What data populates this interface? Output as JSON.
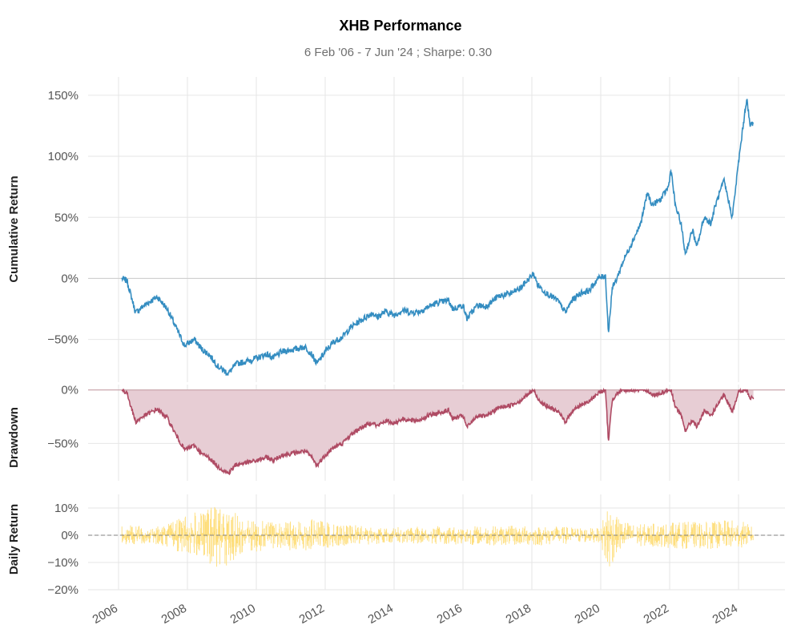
{
  "chart_data": {
    "type": "line",
    "title": "XHB Performance",
    "subtitle": "6 Feb '06 -  7 Jun '24 ;  Sharpe: 0.30",
    "x_ticks": [
      "2006",
      "2008",
      "2010",
      "2012",
      "2014",
      "2016",
      "2018",
      "2020",
      "2022",
      "2024"
    ],
    "x_range": [
      "2006-02-06",
      "2024-06-07"
    ],
    "colors": {
      "cumulative": "#348dc1",
      "drawdown_line": "#af4b64",
      "drawdown_fill": "#e7cdd4",
      "daily": "#fedd78",
      "zero_dashed": "#808080"
    },
    "panels": [
      {
        "name": "cumulative",
        "ylabel": "Cumulative Return",
        "yticks": [
          "150%",
          "100%",
          "50%",
          "0%",
          "−50%"
        ],
        "yvalues": [
          150,
          100,
          50,
          0,
          -50
        ],
        "ylim": [
          -85,
          165
        ],
        "series": [
          {
            "x": [
              "2006-02-06",
              "2006-04-01",
              "2006-07-01",
              "2006-10-01",
              "2007-02-15",
              "2007-06-01",
              "2007-09-01",
              "2007-12-01",
              "2008-03-15",
              "2008-06-01",
              "2008-08-15",
              "2008-11-20",
              "2009-03-09",
              "2009-06-01",
              "2009-09-15",
              "2010-01-15",
              "2010-04-20",
              "2010-07-01",
              "2010-10-01",
              "2011-02-15",
              "2011-06-01",
              "2011-08-10",
              "2011-10-04",
              "2012-01-01",
              "2012-04-01",
              "2012-07-01",
              "2012-10-01",
              "2013-01-01",
              "2013-05-20",
              "2013-07-01",
              "2013-10-01",
              "2014-01-01",
              "2014-04-01",
              "2014-07-01",
              "2014-10-01",
              "2015-01-01",
              "2015-04-01",
              "2015-08-01",
              "2015-09-15",
              "2016-01-01",
              "2016-02-11",
              "2016-06-01",
              "2016-09-01",
              "2017-01-01",
              "2017-06-01",
              "2017-09-01",
              "2018-01-20",
              "2018-03-01",
              "2018-06-01",
              "2018-10-01",
              "2018-12-24",
              "2019-03-01",
              "2019-06-01",
              "2019-09-01",
              "2019-12-01",
              "2020-02-20",
              "2020-03-23",
              "2020-05-01",
              "2020-06-10",
              "2020-09-01",
              "2020-12-01",
              "2021-03-01",
              "2021-05-10",
              "2021-07-01",
              "2021-10-01",
              "2021-12-20",
              "2022-01-15",
              "2022-03-01",
              "2022-05-01",
              "2022-06-16",
              "2022-09-01",
              "2022-10-15",
              "2023-01-01",
              "2023-03-15",
              "2023-05-01",
              "2023-07-31",
              "2023-10-27",
              "2024-01-01",
              "2024-03-28",
              "2024-05-01",
              "2024-06-07"
            ],
            "values": [
              0,
              -2,
              -28,
              -22,
              -15,
              -25,
              -40,
              -55,
              -50,
              -58,
              -62,
              -72,
              -78,
              -70,
              -68,
              -65,
              -62,
              -65,
              -60,
              -58,
              -56,
              -62,
              -70,
              -60,
              -52,
              -48,
              -40,
              -35,
              -28,
              -32,
              -27,
              -30,
              -26,
              -28,
              -27,
              -23,
              -20,
              -18,
              -25,
              -22,
              -33,
              -22,
              -23,
              -15,
              -12,
              -8,
              4,
              -5,
              -12,
              -18,
              -28,
              -18,
              -12,
              -10,
              0,
              2,
              -45,
              -8,
              -2,
              15,
              30,
              45,
              70,
              60,
              65,
              75,
              90,
              60,
              45,
              20,
              40,
              25,
              50,
              45,
              60,
              80,
              50,
              95,
              148,
              125,
              128
            ]
          }
        ]
      },
      {
        "name": "drawdown",
        "ylabel": "Drawdown",
        "yticks": [
          "0%",
          "−50%"
        ],
        "yvalues": [
          0,
          -50
        ],
        "ylim": [
          -85,
          5
        ],
        "series": [
          {
            "x": [
              "2006-02-06",
              "2006-04-01",
              "2006-07-01",
              "2006-10-01",
              "2007-02-15",
              "2007-06-01",
              "2007-09-01",
              "2007-12-01",
              "2008-03-15",
              "2008-06-01",
              "2008-08-15",
              "2008-11-20",
              "2009-03-09",
              "2009-06-01",
              "2009-09-15",
              "2010-01-15",
              "2010-04-20",
              "2010-07-01",
              "2010-10-01",
              "2011-02-15",
              "2011-06-01",
              "2011-08-10",
              "2011-10-04",
              "2012-01-01",
              "2012-04-01",
              "2012-07-01",
              "2012-10-01",
              "2013-01-01",
              "2013-05-20",
              "2013-07-01",
              "2013-10-01",
              "2014-01-01",
              "2014-04-01",
              "2014-07-01",
              "2014-10-01",
              "2015-01-01",
              "2015-04-01",
              "2015-08-01",
              "2015-09-15",
              "2016-01-01",
              "2016-02-11",
              "2016-06-01",
              "2016-09-01",
              "2017-01-01",
              "2017-06-01",
              "2017-09-01",
              "2018-01-20",
              "2018-03-01",
              "2018-06-01",
              "2018-10-01",
              "2018-12-24",
              "2019-03-01",
              "2019-06-01",
              "2019-09-01",
              "2019-12-01",
              "2020-02-20",
              "2020-03-23",
              "2020-05-01",
              "2020-06-10",
              "2020-09-01",
              "2020-12-01",
              "2021-03-01",
              "2021-05-10",
              "2021-07-01",
              "2021-10-01",
              "2021-12-20",
              "2022-01-15",
              "2022-03-01",
              "2022-05-01",
              "2022-06-16",
              "2022-09-01",
              "2022-10-15",
              "2023-01-01",
              "2023-03-15",
              "2023-05-01",
              "2023-07-31",
              "2023-10-27",
              "2024-01-01",
              "2024-03-28",
              "2024-05-01",
              "2024-06-07"
            ],
            "values": [
              0,
              -3,
              -30,
              -24,
              -18,
              -26,
              -42,
              -56,
              -52,
              -60,
              -63,
              -72,
              -78,
              -70,
              -68,
              -66,
              -63,
              -66,
              -61,
              -59,
              -57,
              -63,
              -71,
              -61,
              -54,
              -50,
              -42,
              -36,
              -30,
              -34,
              -29,
              -31,
              -27,
              -29,
              -28,
              -24,
              -22,
              -19,
              -27,
              -24,
              -35,
              -24,
              -25,
              -17,
              -14,
              -10,
              0,
              -8,
              -15,
              -20,
              -30,
              -20,
              -14,
              -11,
              -3,
              0,
              -48,
              -10,
              -4,
              0,
              0,
              0,
              0,
              -5,
              -3,
              0,
              0,
              -15,
              -24,
              -38,
              -28,
              -35,
              -20,
              -24,
              -17,
              -5,
              -20,
              -2,
              0,
              -8,
              -7
            ]
          }
        ]
      },
      {
        "name": "daily",
        "ylabel": "Daily Return",
        "yticks": [
          "10%",
          "0%",
          "−10%",
          "−20%"
        ],
        "yvalues": [
          10,
          0,
          -10,
          -20
        ],
        "ylim": [
          -20,
          15
        ],
        "envelope": {
          "x": [
            "2006-02-06",
            "2007-01-01",
            "2007-08-01",
            "2008-01-01",
            "2008-06-01",
            "2008-10-15",
            "2009-03-01",
            "2009-09-01",
            "2010-06-01",
            "2011-08-10",
            "2012-06-01",
            "2014-01-01",
            "2016-01-01",
            "2018-02-06",
            "2019-06-01",
            "2020-01-01",
            "2020-03-16",
            "2020-06-01",
            "2021-01-01",
            "2022-06-01",
            "2023-03-01",
            "2024-01-01",
            "2024-06-07"
          ],
          "up": [
            4,
            3,
            5,
            9,
            8,
            12,
            10,
            6,
            5,
            6,
            4,
            3,
            3.5,
            3.5,
            3,
            2.5,
            15,
            7,
            4,
            5,
            5,
            6,
            3
          ],
          "down": [
            -4,
            -3,
            -5,
            -8,
            -9,
            -12,
            -11,
            -7,
            -5,
            -6,
            -4,
            -3,
            -3.5,
            -4,
            -3,
            -2.5,
            -18,
            -7,
            -4,
            -5,
            -5,
            -5,
            -3
          ]
        }
      }
    ]
  }
}
